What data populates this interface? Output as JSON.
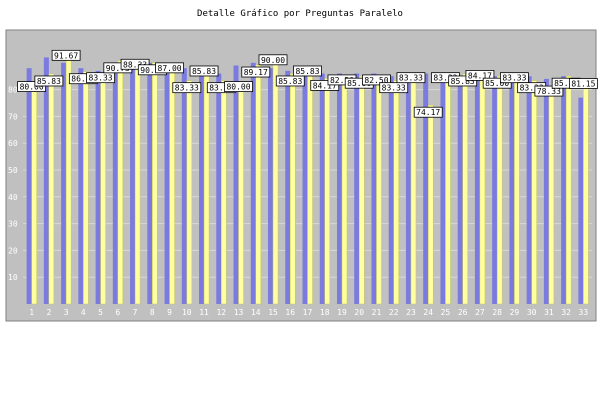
{
  "chart_data": {
    "type": "bar",
    "title": "Detalle Gráfico por Preguntas Paralelo",
    "xlabel": "",
    "ylabel": "",
    "ylim": [
      0,
      100
    ],
    "yticks": [
      10,
      20,
      30,
      40,
      50,
      60,
      70,
      80
    ],
    "grid": true,
    "legend": "none",
    "categories": [
      "1",
      "2",
      "3",
      "4",
      "5",
      "6",
      "7",
      "8",
      "9",
      "10",
      "11",
      "12",
      "13",
      "14",
      "15",
      "16",
      "17",
      "18",
      "19",
      "20",
      "21",
      "22",
      "23",
      "24",
      "25",
      "26",
      "27",
      "28",
      "29",
      "30",
      "31",
      "32",
      "33"
    ],
    "series": [
      {
        "values": [
          88,
          92,
          90,
          88,
          87,
          90,
          89,
          90,
          89,
          88,
          87,
          86,
          89,
          90,
          88,
          87,
          87,
          86,
          86,
          86,
          86,
          85,
          86,
          86,
          85,
          85,
          86,
          85,
          86,
          85,
          84,
          85,
          77
        ]
      },
      {
        "values": [
          80.0,
          85.83,
          91.67,
          86.67,
          83.33,
          90.73,
          88.33,
          90.0,
          87.0,
          83.33,
          85.83,
          83.33,
          80.0,
          89.17,
          90.0,
          85.83,
          85.83,
          84.17,
          82.5,
          85.0,
          82.5,
          83.33,
          83.33,
          74.17,
          83.33,
          85.83,
          84.17,
          85.0,
          83.33,
          83.33,
          78.33,
          85.0,
          81.15
        ]
      }
    ],
    "colors": {
      "plot_bg": "#c0c0c0",
      "series_1": "#7b7bdf",
      "series_2": "#ffffa0",
      "label_box": "#ffffff"
    }
  }
}
